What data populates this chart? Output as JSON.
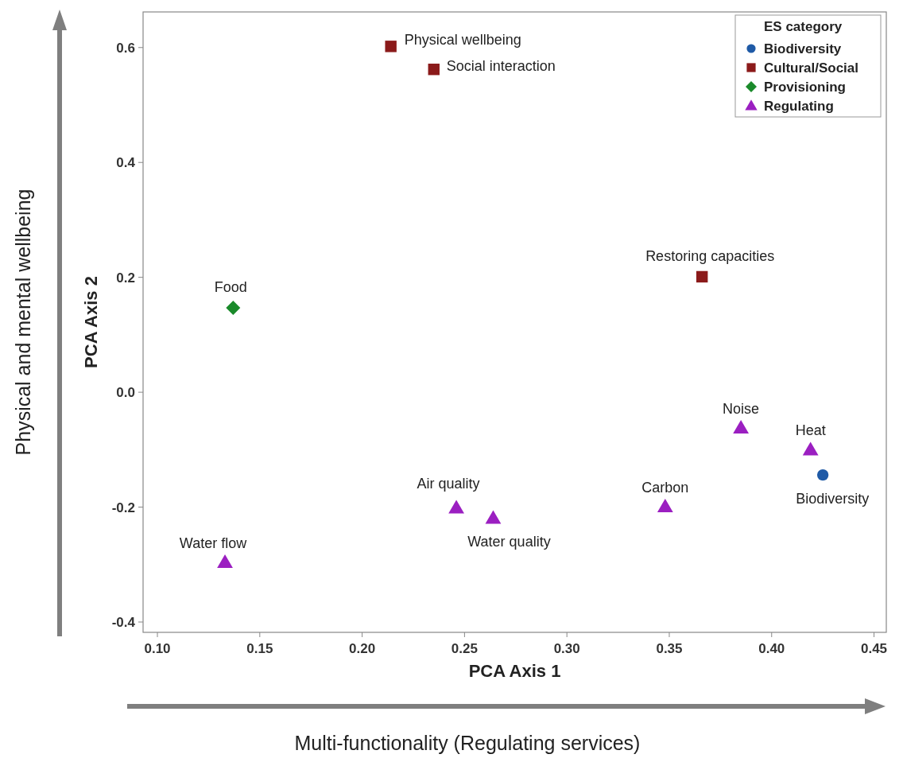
{
  "chart_data": {
    "type": "scatter",
    "xlabel": "PCA Axis 1",
    "ylabel": "PCA Axis 2",
    "legend_title": "ES category",
    "legend": "top right",
    "grid": false,
    "xlim": [
      0.093,
      0.456
    ],
    "xticks": [
      {
        "value": 0.1,
        "label": "0.10"
      },
      0.15,
      {
        "value": 0.2,
        "label": "0.20"
      },
      0.25,
      {
        "value": 0.3,
        "label": "0.30"
      },
      0.35,
      {
        "value": 0.4,
        "label": "0.40"
      },
      0.45
    ],
    "ylim": [
      -0.418,
      0.662
    ],
    "yticks": [
      -0.4,
      -0.2,
      {
        "value": 0,
        "label": "0.0"
      },
      0.2,
      0.4,
      0.6
    ],
    "series": [
      {
        "name": "Biodiversity",
        "color": "#1f5aa6",
        "marker": "circle",
        "x": [
          0.425
        ],
        "values": [
          -0.144
        ]
      },
      {
        "name": "Cultural/Social",
        "color": "#8b1a1a",
        "marker": "square",
        "x": [
          0.214,
          0.235,
          0.366
        ],
        "values": [
          0.602,
          0.562,
          0.201
        ]
      },
      {
        "name": "Provisioning",
        "color": "#1a8a2a",
        "marker": "diamond",
        "x": [
          0.137
        ],
        "values": [
          0.147
        ]
      },
      {
        "name": "Regulating",
        "color": "#9b1fc1",
        "marker": "triangle",
        "x": [
          0.385,
          0.419,
          0.348,
          0.246,
          0.264,
          0.133
        ],
        "values": [
          -0.062,
          -0.1,
          -0.199,
          -0.201,
          -0.219,
          -0.296
        ]
      }
    ],
    "annotations": [
      {
        "text": "Physical wellbeing",
        "x": 0.214,
        "y": 0.602
      },
      {
        "text": "Social interaction",
        "x": 0.235,
        "y": 0.562
      },
      {
        "text": "Restoring capacities",
        "x": 0.366,
        "y": 0.201
      },
      {
        "text": "Food",
        "x": 0.137,
        "y": 0.147
      },
      {
        "text": "Noise",
        "x": 0.385,
        "y": -0.062
      },
      {
        "text": "Heat",
        "x": 0.419,
        "y": -0.1
      },
      {
        "text": "Biodiversity",
        "x": 0.425,
        "y": -0.144
      },
      {
        "text": "Carbon",
        "x": 0.348,
        "y": -0.199
      },
      {
        "text": "Air quality",
        "x": 0.246,
        "y": -0.201
      },
      {
        "text": "Water quality",
        "x": 0.264,
        "y": -0.219
      },
      {
        "text": "Water flow",
        "x": 0.133,
        "y": -0.296
      },
      "Physical and mental wellbeing",
      "Multi-functionality (Regulating services)"
    ]
  }
}
